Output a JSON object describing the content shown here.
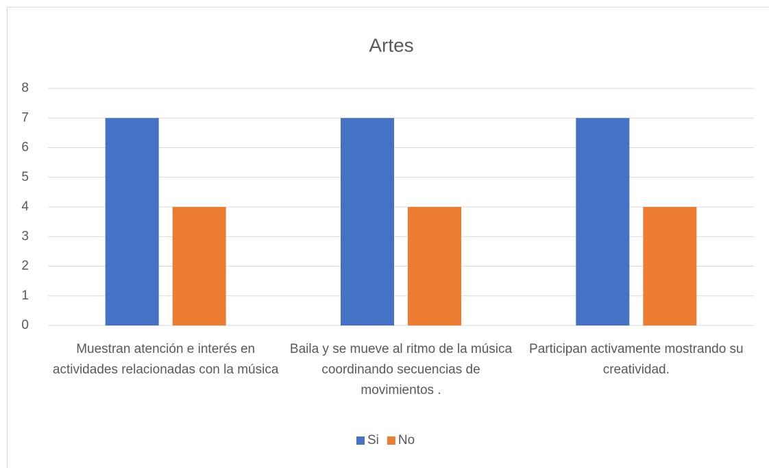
{
  "chart_data": {
    "type": "bar",
    "title": "Artes",
    "categories": [
      "Muestran atención e interés en actividades relacionadas con la música",
      "Baila y se mueve al ritmo de la música coordinando secuencias de movimientos .",
      "Participan activamente mostrando su creatividad."
    ],
    "series": [
      {
        "name": "Si",
        "color": "#4472c4",
        "values": [
          7,
          7,
          7
        ]
      },
      {
        "name": "No",
        "color": "#ed7d31",
        "values": [
          4,
          4,
          4
        ]
      }
    ],
    "ylim": [
      0,
      8
    ],
    "yticks": [
      0,
      1,
      2,
      3,
      4,
      5,
      6,
      7,
      8
    ],
    "grid": true,
    "legend": "bottom"
  }
}
